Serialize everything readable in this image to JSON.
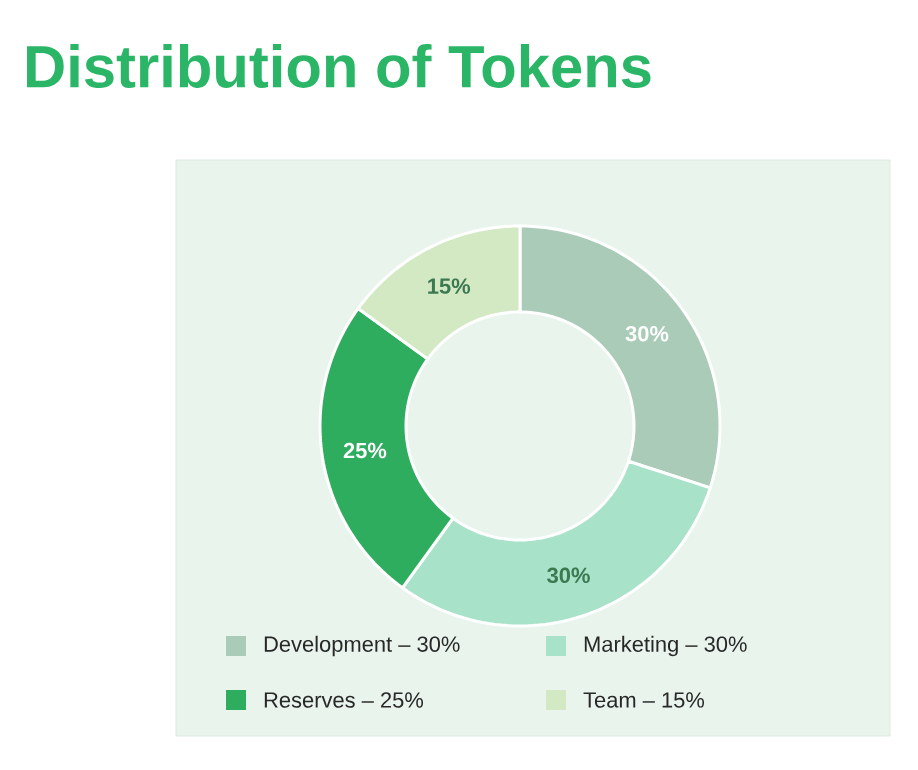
{
  "chart_data": {
    "type": "donut",
    "title": "Distribution of Tokens",
    "categories": [
      "Development – 30%",
      "Marketing – 30%",
      "Reserves – 25%",
      "Team – 15%"
    ],
    "values": [
      30,
      30,
      25,
      15
    ],
    "colors": [
      "#a9cbb8",
      "#a8e2c9",
      "#2fad5e",
      "#d3e9c3"
    ],
    "value_labels": [
      "30%",
      "30%",
      "25%",
      "15%"
    ],
    "legend": "bottom"
  }
}
